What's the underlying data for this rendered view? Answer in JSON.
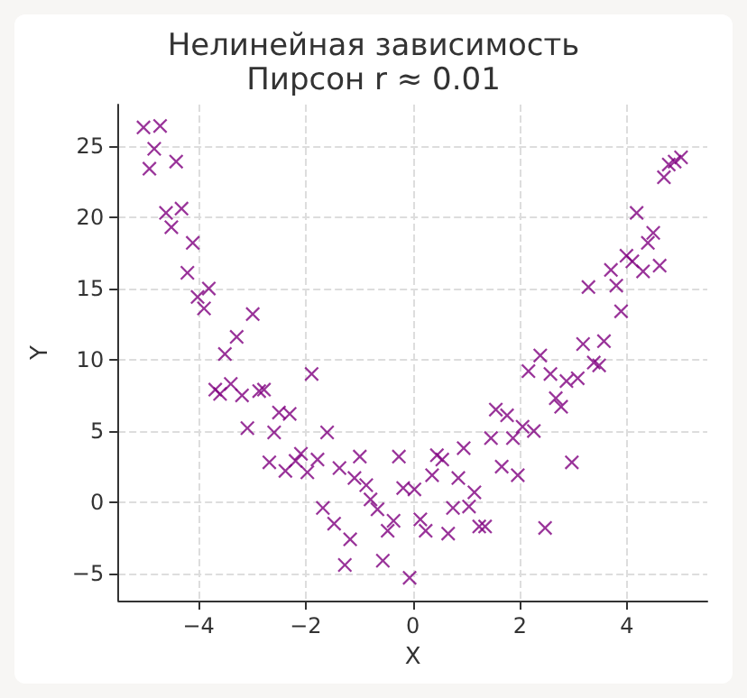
{
  "chart_data": {
    "type": "scatter",
    "title": "Нелинейная зависимость",
    "subtitle": "Пирсон r ≈ 0.01",
    "xlabel": "X",
    "ylabel": "Y",
    "xlim": [
      -5.5,
      5.5
    ],
    "ylim": [
      -6.9,
      27.9
    ],
    "xticks": [
      -4,
      -2,
      0,
      2,
      4
    ],
    "yticks": [
      -5,
      0,
      5,
      10,
      15,
      20,
      25
    ],
    "grid": true,
    "marker": "cross",
    "series": [
      {
        "color": "#800080",
        "x": [
          -5.03,
          -4.92,
          -4.83,
          -4.72,
          -4.61,
          -4.51,
          -4.42,
          -4.32,
          -4.21,
          -4.11,
          -4.02,
          -3.9,
          -3.81,
          -3.69,
          -3.6,
          -3.51,
          -3.4,
          -3.29,
          -3.19,
          -3.09,
          -2.99,
          -2.87,
          -2.78,
          -2.68,
          -2.59,
          -2.5,
          -2.38,
          -2.3,
          -2.19,
          -2.09,
          -1.97,
          -1.89,
          -1.78,
          -1.68,
          -1.6,
          -1.47,
          -1.37,
          -1.27,
          -1.17,
          -1.09,
          -0.99,
          -0.87,
          -0.79,
          -0.66,
          -0.56,
          -0.47,
          -0.36,
          -0.26,
          -0.18,
          -0.06,
          0.03,
          0.14,
          0.24,
          0.36,
          0.45,
          0.55,
          0.66,
          0.75,
          0.85,
          0.95,
          1.05,
          1.15,
          1.24,
          1.35,
          1.46,
          1.55,
          1.66,
          1.76,
          1.87,
          1.96,
          2.05,
          2.16,
          2.26,
          2.38,
          2.47,
          2.57,
          2.67,
          2.77,
          2.87,
          2.97,
          3.08,
          3.18,
          3.28,
          3.38,
          3.48,
          3.57,
          3.7,
          3.8,
          3.89,
          3.99,
          4.1,
          4.18,
          4.3,
          4.39,
          4.49,
          4.61,
          4.69,
          4.78,
          4.89,
          5.01
        ],
        "values": [
          26.3,
          23.4,
          24.8,
          26.4,
          20.3,
          19.3,
          23.9,
          20.6,
          16.1,
          18.2,
          14.4,
          13.6,
          15.0,
          7.9,
          7.6,
          10.4,
          8.3,
          11.6,
          7.5,
          5.2,
          13.2,
          7.8,
          7.9,
          2.8,
          4.9,
          6.3,
          2.2,
          6.2,
          2.9,
          3.4,
          2.1,
          9.0,
          3.0,
          -0.4,
          4.9,
          -1.5,
          2.4,
          -4.4,
          -2.6,
          1.7,
          3.2,
          1.2,
          0.2,
          -0.5,
          -4.1,
          -2.0,
          -1.3,
          3.2,
          1.0,
          -5.3,
          0.9,
          -1.2,
          -2.0,
          1.9,
          3.3,
          3.0,
          -2.2,
          -0.4,
          1.7,
          3.8,
          -0.3,
          0.7,
          -1.7,
          -1.7,
          4.5,
          6.5,
          2.5,
          6.1,
          4.5,
          1.9,
          5.3,
          9.2,
          5.0,
          10.3,
          -1.8,
          9.0,
          7.3,
          6.7,
          8.5,
          2.8,
          8.7,
          11.1,
          15.1,
          9.8,
          9.6,
          11.3,
          16.3,
          15.2,
          13.4,
          17.3,
          16.9,
          20.3,
          16.2,
          18.2,
          18.9,
          16.6,
          22.8,
          23.7,
          23.9,
          24.2
        ]
      }
    ]
  }
}
